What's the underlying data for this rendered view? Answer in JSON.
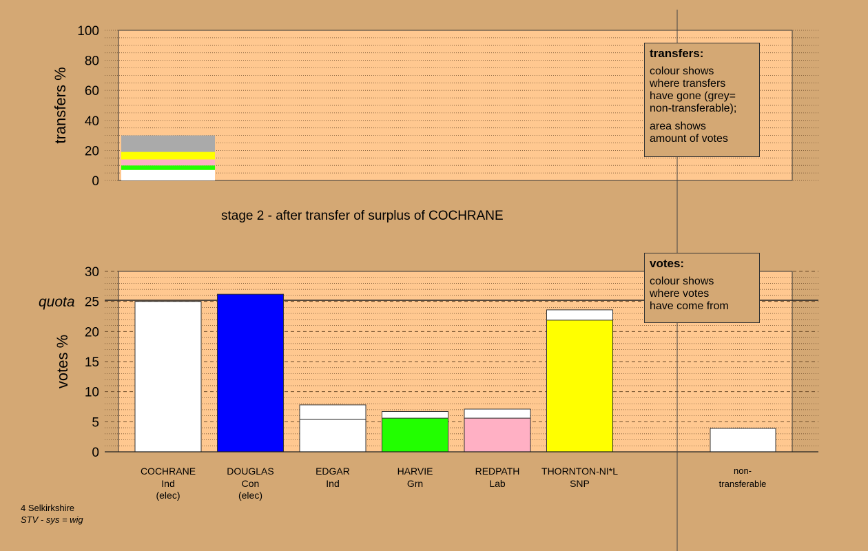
{
  "chart_data": [
    {
      "type": "bar",
      "chart": "transfers",
      "ylabel": "transfers %",
      "ylim": [
        0,
        100
      ],
      "yticks": [
        "0",
        "20",
        "40",
        "60",
        "80",
        "100"
      ],
      "stage_label": "stage 2 - after transfer of surplus of COCHRANE",
      "legend": {
        "title": "transfers:",
        "lines1": [
          "colour shows",
          "where transfers",
          "have gone (grey=",
          "non-transferable);"
        ],
        "lines2": [
          "area shows",
          "amount of votes"
        ]
      },
      "stack": [
        {
          "to": "EDGAR",
          "color": "#ffffff",
          "from": 0,
          "to_value": 7
        },
        {
          "to": "HARVIE",
          "color": "#22ff00",
          "from": 7,
          "to_value": 10
        },
        {
          "to": "REDPATH",
          "color": "#ffb0c4",
          "from": 10,
          "to_value": 14
        },
        {
          "to": "THORNTON-NI*L",
          "color": "#ffff00",
          "from": 14,
          "to_value": 19
        },
        {
          "to": "non-transferable",
          "color": "#aaaaaa",
          "from": 19,
          "to_value": 30
        }
      ]
    },
    {
      "type": "bar",
      "chart": "votes",
      "ylabel": "votes %",
      "ylim": [
        0,
        30
      ],
      "yticks": [
        "0",
        "5",
        "10",
        "15",
        "20",
        "25",
        "30"
      ],
      "quota": 25.2,
      "quota_label": "quota",
      "legend": {
        "title": "votes:",
        "lines1": [
          "colour shows",
          "where votes",
          "have come from"
        ]
      },
      "candidates": [
        {
          "name": "COCHRANE",
          "party": "Ind",
          "status": "(elec)",
          "color": "#ffffff",
          "first": 25.0,
          "transfer": 0
        },
        {
          "name": "DOUGLAS",
          "party": "Con",
          "status": "(elec)",
          "color": "#0000ff",
          "first": 26.2,
          "transfer": 0
        },
        {
          "name": "EDGAR",
          "party": "Ind",
          "status": "",
          "color": "#ffffff",
          "first": 5.4,
          "transfer": 2.4
        },
        {
          "name": "HARVIE",
          "party": "Grn",
          "status": "",
          "color": "#22ff00",
          "first": 5.6,
          "transfer": 1.1
        },
        {
          "name": "REDPATH",
          "party": "Lab",
          "status": "",
          "color": "#ffb0c4",
          "first": 5.6,
          "transfer": 1.5
        },
        {
          "name": "THORNTON-NI*L",
          "party": "SNP",
          "status": "",
          "color": "#ffff00",
          "first": 21.9,
          "transfer": 1.7
        }
      ],
      "nontransferable": {
        "line1": "non-",
        "line2": "transferable",
        "value": 3.9,
        "color": "#ffffff"
      }
    }
  ],
  "footer": {
    "line1": "4 Selkirkshire",
    "line2": "STV - sys = wig"
  },
  "colors": {
    "background": "#d4a874",
    "plot": "#ffc890"
  }
}
